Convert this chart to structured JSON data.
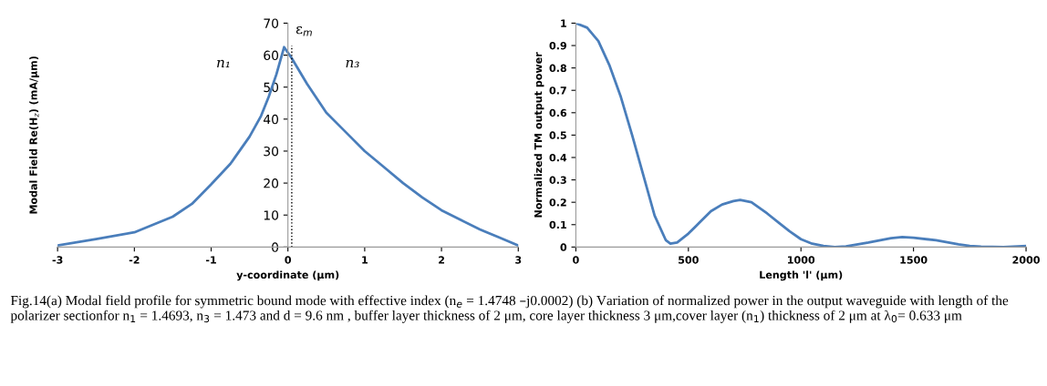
{
  "chart_data": [
    {
      "type": "line",
      "xlabel": "y-coordinate (μm)",
      "ylabel": "Modal Field Re(H$_{z}$) (mA/μm)",
      "x": [
        -3,
        -2.5,
        -2,
        -1.5,
        -1.25,
        -1,
        -0.75,
        -0.5,
        -0.35,
        -0.25,
        -0.15,
        -0.05,
        0.05,
        0.25,
        0.5,
        0.75,
        1,
        1.25,
        1.5,
        1.75,
        2,
        2.25,
        2.5,
        2.75,
        3
      ],
      "series": [
        {
          "color": "#4a7ebb",
          "values": [
            0.5,
            2.5,
            4.6,
            9.5,
            13.5,
            19.6,
            26,
            34.5,
            41,
            47,
            54,
            62.5,
            59,
            51,
            42,
            36,
            30,
            25,
            20,
            15.5,
            11.5,
            8.5,
            5.5,
            3,
            0.5
          ]
        }
      ],
      "xlim": [
        -3,
        3
      ],
      "xticks": [
        -3,
        -2,
        -1,
        0,
        1,
        2,
        3
      ],
      "ylim": [
        0,
        70
      ],
      "yticks": [
        0,
        10,
        20,
        30,
        40,
        50,
        60,
        70
      ],
      "ref_lines": [
        {
          "axis": "x",
          "value": 0.05,
          "label": "ε$_{m}$",
          "color": "#000000",
          "line_style": "dotted"
        }
      ],
      "annotations": [
        "n₁",
        "n₃",
        "Fig.14(a) Modal field profile for symmetric bound mode with effective index (n$_{e}$ = 1.4748 –j0.0002) (b) Variation of normalized power in the output waveguide with length of the polarizer sectionfor n$_{1}$ = 1.4693, n$_{3}$ = 1.473 and d = 9.6 nm , buffer layer thickness of 2 μm, core layer thickness 3 μm,cover layer (n$_{1}$) thickness of 2 μm at λ$_{0}$= 0.633 μm"
      ]
    },
    {
      "type": "line",
      "xlabel": "Length 'l' (μm)",
      "ylabel": "Normalized TM output power",
      "x": [
        0,
        50,
        100,
        150,
        200,
        250,
        300,
        350,
        400,
        420,
        450,
        500,
        550,
        600,
        650,
        700,
        730,
        780,
        850,
        900,
        950,
        1000,
        1050,
        1100,
        1150,
        1200,
        1300,
        1400,
        1450,
        1500,
        1600,
        1700,
        1750,
        1800,
        1900,
        2000
      ],
      "series": [
        {
          "color": "#4a7ebb",
          "values": [
            1.0,
            0.98,
            0.92,
            0.81,
            0.67,
            0.5,
            0.32,
            0.14,
            0.03,
            0.015,
            0.02,
            0.06,
            0.11,
            0.16,
            0.19,
            0.205,
            0.21,
            0.2,
            0.15,
            0.11,
            0.07,
            0.035,
            0.015,
            0.005,
            0.0,
            0.003,
            0.02,
            0.04,
            0.045,
            0.042,
            0.03,
            0.012,
            0.005,
            0.002,
            0.0,
            0.005
          ]
        }
      ],
      "xlim": [
        0,
        2000
      ],
      "xticks": [
        0,
        500,
        1000,
        1500,
        2000
      ],
      "ylim": [
        0,
        1
      ],
      "yticks": [
        0,
        0.1,
        0.2,
        0.3,
        0.4,
        0.5,
        0.6,
        0.7,
        0.8,
        0.9,
        1
      ]
    }
  ]
}
